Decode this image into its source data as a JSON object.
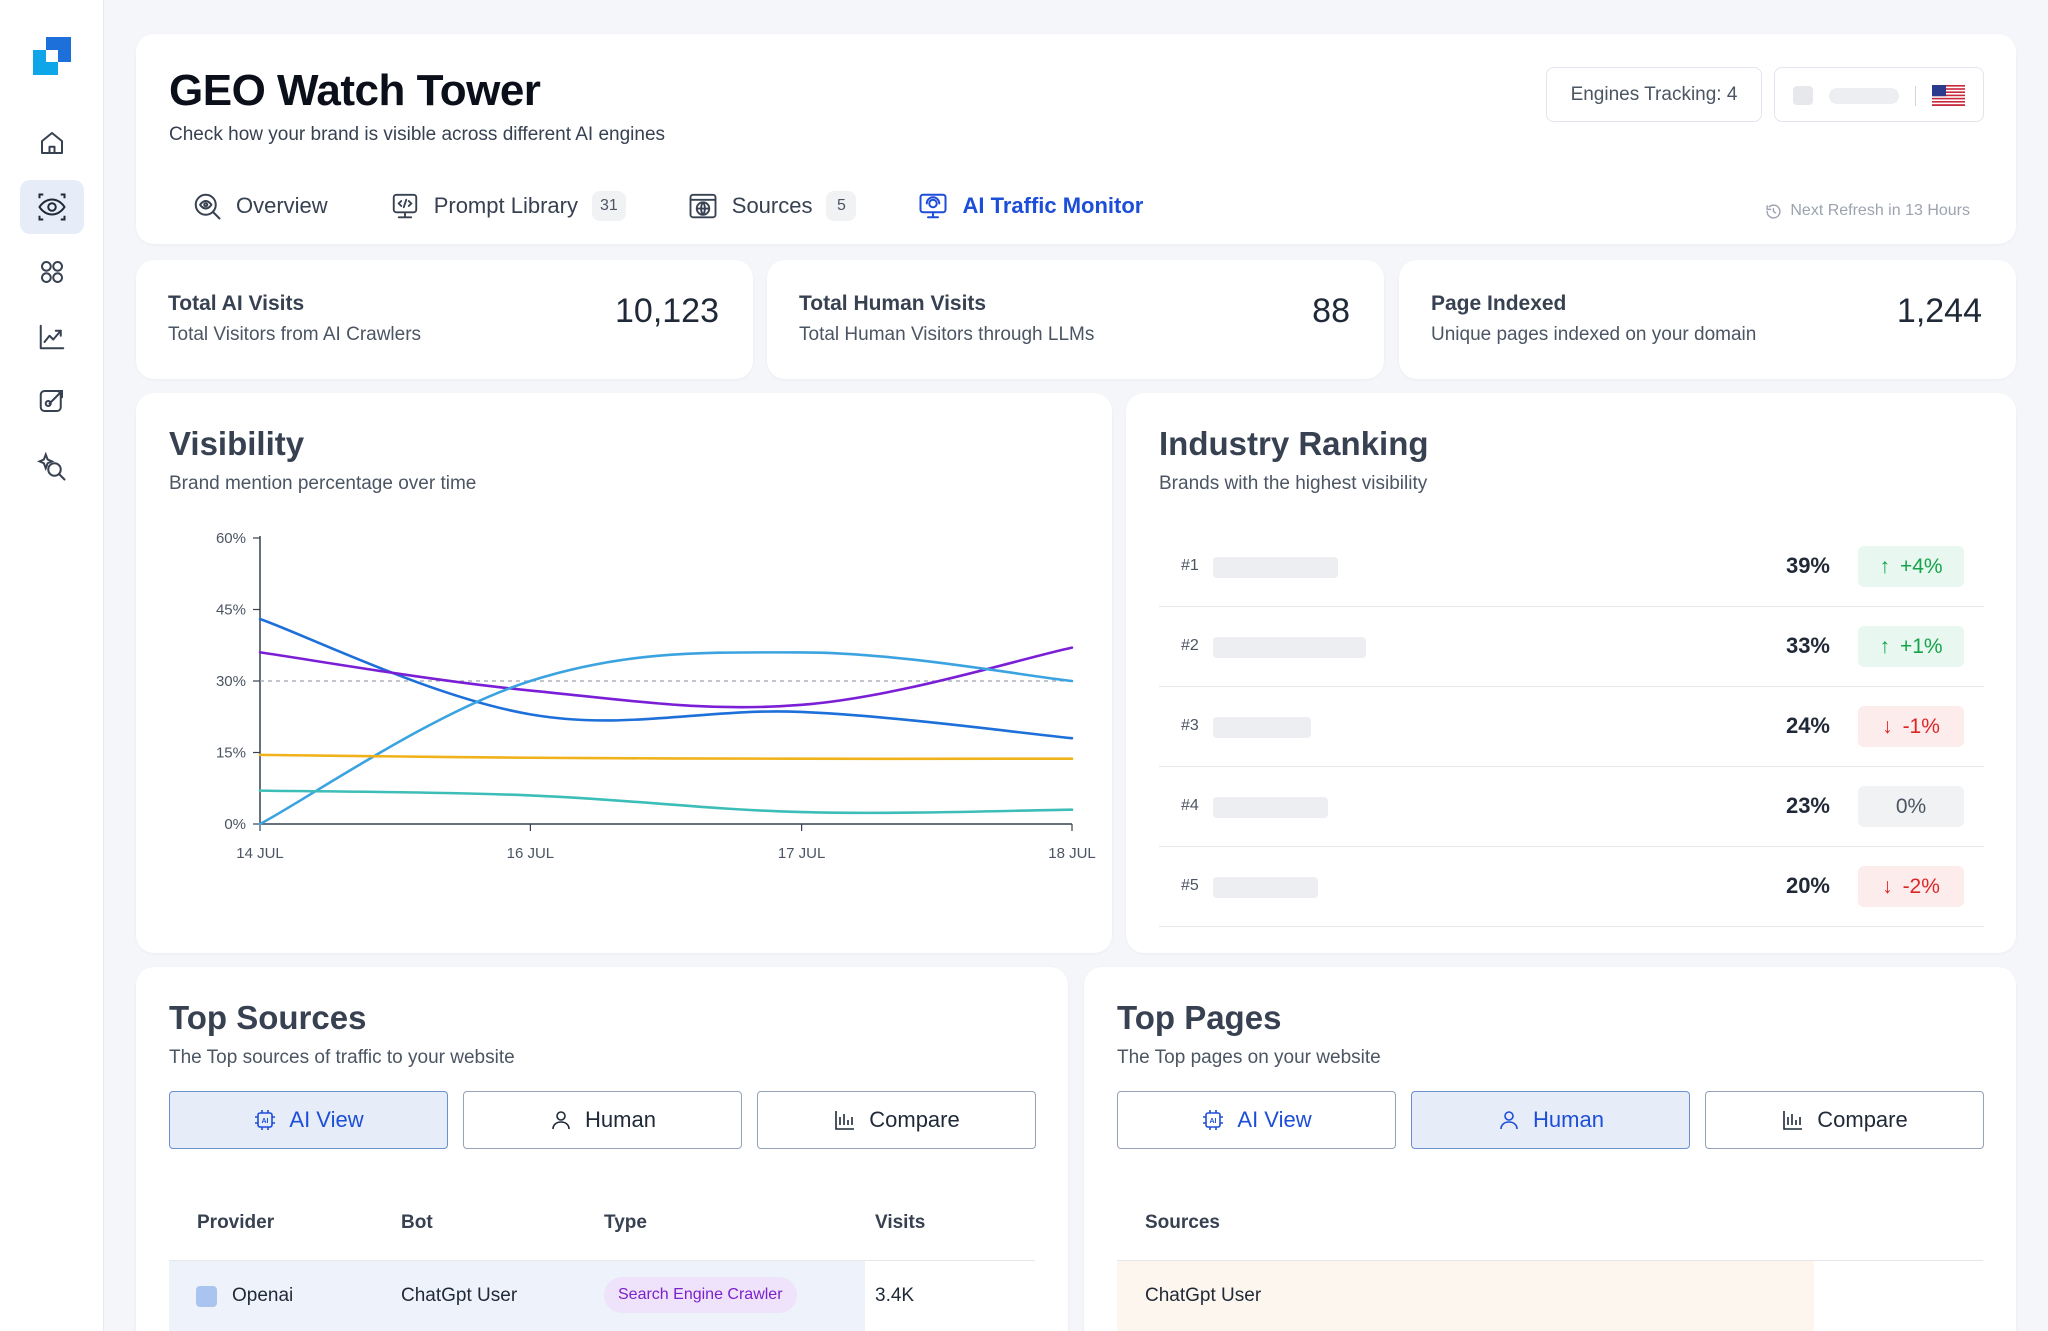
{
  "sidebar": {
    "items": [
      {
        "icon": "home-icon"
      },
      {
        "icon": "eye-scan-icon",
        "active": true
      },
      {
        "icon": "grid-icon"
      },
      {
        "icon": "trend-chart-icon"
      },
      {
        "icon": "edit-link-icon"
      },
      {
        "icon": "sparkle-search-icon"
      }
    ]
  },
  "header": {
    "title": "GEO Watch Tower",
    "subtitle": "Check how your brand is visible across different AI engines",
    "engines_tracking": "Engines Tracking: 4",
    "tabs": [
      {
        "label": "Overview",
        "icon": "eye-search-icon"
      },
      {
        "label": "Prompt Library",
        "count": "31",
        "icon": "code-window-icon"
      },
      {
        "label": "Sources",
        "count": "5",
        "icon": "globe-icon"
      },
      {
        "label": "AI Traffic Monitor",
        "icon": "monitor-icon",
        "active": true
      }
    ],
    "refresh": "Next Refresh in 13 Hours"
  },
  "stats": [
    {
      "title": "Total AI Visits",
      "desc": "Total Visitors from AI Crawlers",
      "value": "10,123"
    },
    {
      "title": "Total Human Visits",
      "desc": "Total Human Visitors through LLMs",
      "value": "88"
    },
    {
      "title": "Page Indexed",
      "desc": "Unique pages indexed on your domain",
      "value": "1,244"
    }
  ],
  "visibility": {
    "title": "Visibility",
    "subtitle": "Brand mention percentage over time"
  },
  "chart_data": {
    "type": "line",
    "x": [
      "14 JUL",
      "16 JUL",
      "17 JUL",
      "18 JUL"
    ],
    "y_ticks": [
      "0%",
      "15%",
      "30%",
      "45%",
      "60%"
    ],
    "ylim": [
      0,
      60
    ],
    "reference_line": 30,
    "grid": false,
    "series": [
      {
        "color": "#1d6fd9",
        "values": [
          43,
          23,
          23.5,
          18
        ]
      },
      {
        "color": "#7b1fd6",
        "values": [
          36,
          28,
          25,
          37
        ]
      },
      {
        "color": "#3ba3e0",
        "values": [
          0,
          30,
          36,
          30
        ]
      },
      {
        "color": "#f0b21a",
        "values": [
          14.5,
          13.9,
          13.7,
          13.7
        ]
      },
      {
        "color": "#3dbdb7",
        "values": [
          7,
          6,
          2.5,
          3
        ]
      }
    ]
  },
  "ranking": {
    "title": "Industry Ranking",
    "subtitle": "Brands with the highest visibility",
    "rows": [
      {
        "rank": "#1",
        "pct": "39%",
        "change": "+4%",
        "dir": "up",
        "bar_fraction": 0.5
      },
      {
        "rank": "#2",
        "pct": "33%",
        "change": "+1%",
        "dir": "up",
        "bar_fraction": 0.61
      },
      {
        "rank": "#3",
        "pct": "24%",
        "change": "-1%",
        "dir": "down",
        "bar_fraction": 0.39
      },
      {
        "rank": "#4",
        "pct": "23%",
        "change": "0%",
        "dir": "flat",
        "bar_fraction": 0.46
      },
      {
        "rank": "#5",
        "pct": "20%",
        "change": "-2%",
        "dir": "down",
        "bar_fraction": 0.42
      }
    ]
  },
  "sources": {
    "title": "Top Sources",
    "subtitle": "The Top sources of traffic to your website",
    "toggles": [
      "AI View",
      "Human",
      "Compare"
    ],
    "selected": "AI View",
    "columns": [
      "Provider",
      "Bot",
      "Type",
      "Visits"
    ],
    "rows": [
      {
        "provider": "Openai",
        "bot": "ChatGpt User",
        "type": "Search Engine Crawler",
        "visits": "3.4K"
      }
    ]
  },
  "pages": {
    "title": "Top Pages",
    "subtitle": "The Top pages on your website",
    "toggles": [
      "AI View",
      "Human",
      "Compare"
    ],
    "selected": "Human",
    "columns": [
      "Sources"
    ],
    "rows": [
      {
        "source": "ChatGpt User"
      }
    ]
  }
}
